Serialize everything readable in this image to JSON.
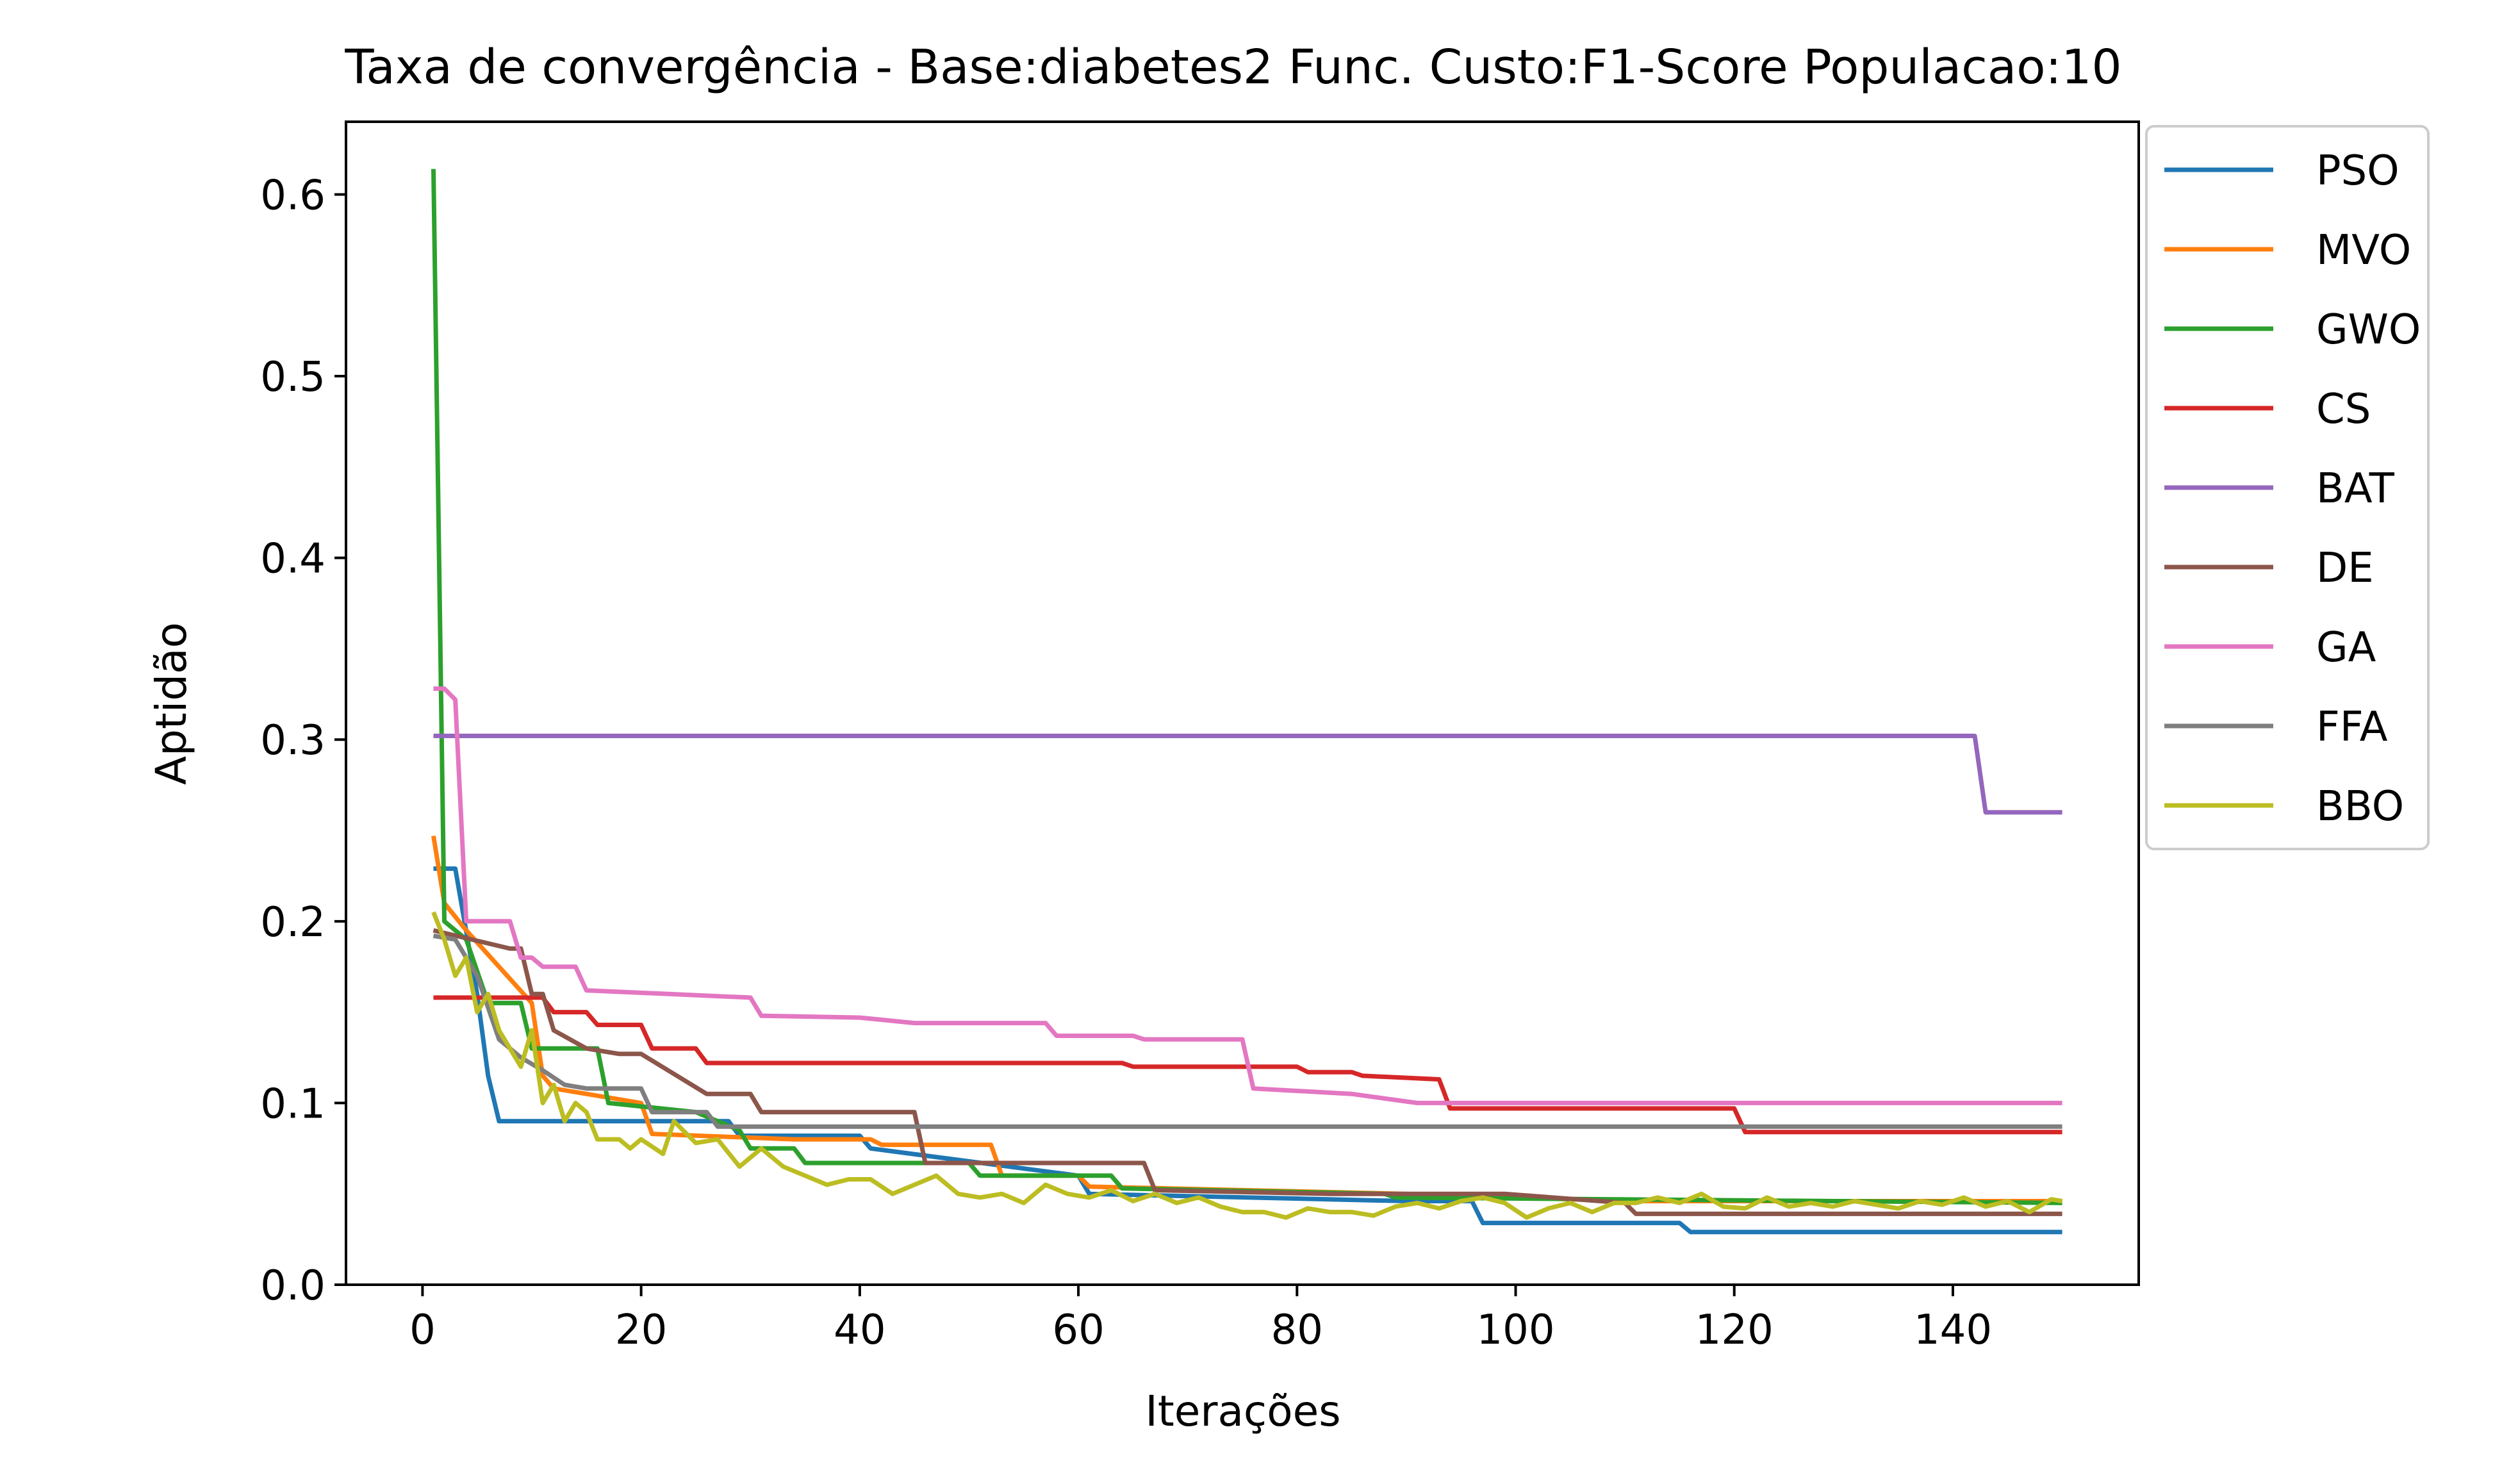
{
  "chart_data": {
    "type": "line",
    "title": "Taxa de convergência - Base:diabetes2 Func. Custo:F1-Score Populacao:10",
    "xlabel": "Iterações",
    "ylabel": "Aptidão",
    "xlim": [
      -7,
      157
    ],
    "ylim": [
      0,
      0.64
    ],
    "xticks": [
      0,
      20,
      40,
      60,
      80,
      100,
      120,
      140
    ],
    "yticks": [
      0.0,
      0.1,
      0.2,
      0.3,
      0.4,
      0.5,
      0.6
    ],
    "xtick_labels": [
      "0",
      "20",
      "40",
      "60",
      "80",
      "100",
      "120",
      "140"
    ],
    "ytick_labels": [
      "0.0",
      "0.1",
      "0.2",
      "0.3",
      "0.4",
      "0.5",
      "0.6"
    ],
    "grid": false,
    "legend_position": "outside-upper-right",
    "x_range": [
      1,
      150
    ],
    "series": [
      {
        "name": "PSO",
        "color": "#1f77b4",
        "points": [
          [
            1,
            0.229
          ],
          [
            3,
            0.229
          ],
          [
            5,
            0.16
          ],
          [
            6,
            0.115
          ],
          [
            7,
            0.09
          ],
          [
            28,
            0.09
          ],
          [
            29,
            0.082
          ],
          [
            40,
            0.082
          ],
          [
            41,
            0.075
          ],
          [
            60,
            0.06
          ],
          [
            61,
            0.05
          ],
          [
            90,
            0.046
          ],
          [
            96,
            0.046
          ],
          [
            97,
            0.034
          ],
          [
            115,
            0.034
          ],
          [
            116,
            0.029
          ],
          [
            150,
            0.029
          ]
        ]
      },
      {
        "name": "MVO",
        "color": "#ff7f0e",
        "points": [
          [
            1,
            0.247
          ],
          [
            2,
            0.21
          ],
          [
            4,
            0.195
          ],
          [
            10,
            0.155
          ],
          [
            11,
            0.115
          ],
          [
            12,
            0.108
          ],
          [
            20,
            0.1
          ],
          [
            21,
            0.083
          ],
          [
            34,
            0.08
          ],
          [
            41,
            0.08
          ],
          [
            42,
            0.077
          ],
          [
            52,
            0.077
          ],
          [
            53,
            0.06
          ],
          [
            60,
            0.06
          ],
          [
            61,
            0.054
          ],
          [
            90,
            0.05
          ],
          [
            110,
            0.046
          ],
          [
            150,
            0.046
          ]
        ]
      },
      {
        "name": "GWO",
        "color": "#2ca02c",
        "points": [
          [
            1,
            0.614
          ],
          [
            2,
            0.2
          ],
          [
            4,
            0.19
          ],
          [
            6,
            0.155
          ],
          [
            9,
            0.155
          ],
          [
            10,
            0.13
          ],
          [
            16,
            0.13
          ],
          [
            17,
            0.1
          ],
          [
            25,
            0.095
          ],
          [
            29,
            0.085
          ],
          [
            30,
            0.075
          ],
          [
            34,
            0.075
          ],
          [
            35,
            0.067
          ],
          [
            50,
            0.067
          ],
          [
            51,
            0.06
          ],
          [
            63,
            0.06
          ],
          [
            64,
            0.053
          ],
          [
            88,
            0.05
          ],
          [
            89,
            0.048
          ],
          [
            150,
            0.045
          ]
        ]
      },
      {
        "name": "CS",
        "color": "#d62728",
        "points": [
          [
            1,
            0.158
          ],
          [
            11,
            0.158
          ],
          [
            12,
            0.15
          ],
          [
            15,
            0.15
          ],
          [
            16,
            0.143
          ],
          [
            20,
            0.143
          ],
          [
            21,
            0.13
          ],
          [
            25,
            0.13
          ],
          [
            26,
            0.122
          ],
          [
            64,
            0.122
          ],
          [
            65,
            0.12
          ],
          [
            80,
            0.12
          ],
          [
            81,
            0.117
          ],
          [
            85,
            0.117
          ],
          [
            86,
            0.115
          ],
          [
            93,
            0.113
          ],
          [
            94,
            0.097
          ],
          [
            120,
            0.097
          ],
          [
            121,
            0.084
          ],
          [
            150,
            0.084
          ]
        ]
      },
      {
        "name": "BAT",
        "color": "#9467bd",
        "points": [
          [
            1,
            0.302
          ],
          [
            142,
            0.302
          ],
          [
            143,
            0.26
          ],
          [
            150,
            0.26
          ]
        ]
      },
      {
        "name": "DE",
        "color": "#8c564b",
        "points": [
          [
            1,
            0.195
          ],
          [
            8,
            0.185
          ],
          [
            9,
            0.185
          ],
          [
            10,
            0.16
          ],
          [
            11,
            0.16
          ],
          [
            12,
            0.14
          ],
          [
            15,
            0.13
          ],
          [
            18,
            0.127
          ],
          [
            20,
            0.127
          ],
          [
            26,
            0.105
          ],
          [
            30,
            0.105
          ],
          [
            31,
            0.095
          ],
          [
            45,
            0.095
          ],
          [
            46,
            0.067
          ],
          [
            66,
            0.067
          ],
          [
            67,
            0.052
          ],
          [
            83,
            0.05
          ],
          [
            99,
            0.05
          ],
          [
            110,
            0.045
          ],
          [
            111,
            0.039
          ],
          [
            150,
            0.039
          ]
        ]
      },
      {
        "name": "GA",
        "color": "#e377c2",
        "points": [
          [
            1,
            0.328
          ],
          [
            2,
            0.328
          ],
          [
            3,
            0.322
          ],
          [
            4,
            0.2
          ],
          [
            8,
            0.2
          ],
          [
            9,
            0.18
          ],
          [
            10,
            0.18
          ],
          [
            11,
            0.175
          ],
          [
            14,
            0.175
          ],
          [
            15,
            0.162
          ],
          [
            30,
            0.158
          ],
          [
            31,
            0.148
          ],
          [
            40,
            0.147
          ],
          [
            45,
            0.144
          ],
          [
            57,
            0.144
          ],
          [
            58,
            0.137
          ],
          [
            65,
            0.137
          ],
          [
            66,
            0.135
          ],
          [
            75,
            0.135
          ],
          [
            76,
            0.108
          ],
          [
            85,
            0.105
          ],
          [
            91,
            0.1
          ],
          [
            150,
            0.1
          ]
        ]
      },
      {
        "name": "FFA",
        "color": "#7f7f7f",
        "points": [
          [
            1,
            0.192
          ],
          [
            3,
            0.19
          ],
          [
            5,
            0.17
          ],
          [
            7,
            0.135
          ],
          [
            9,
            0.125
          ],
          [
            11,
            0.118
          ],
          [
            13,
            0.11
          ],
          [
            15,
            0.108
          ],
          [
            20,
            0.108
          ],
          [
            21,
            0.095
          ],
          [
            26,
            0.095
          ],
          [
            27,
            0.087
          ],
          [
            150,
            0.087
          ]
        ]
      },
      {
        "name": "BBO",
        "color": "#bcbd22",
        "points": [
          [
            1,
            0.205
          ],
          [
            2,
            0.19
          ],
          [
            3,
            0.17
          ],
          [
            4,
            0.18
          ],
          [
            5,
            0.15
          ],
          [
            6,
            0.16
          ],
          [
            7,
            0.14
          ],
          [
            8,
            0.13
          ],
          [
            9,
            0.12
          ],
          [
            10,
            0.14
          ],
          [
            11,
            0.1
          ],
          [
            12,
            0.11
          ],
          [
            13,
            0.09
          ],
          [
            14,
            0.1
          ],
          [
            15,
            0.095
          ],
          [
            16,
            0.08
          ],
          [
            18,
            0.08
          ],
          [
            19,
            0.075
          ],
          [
            20,
            0.08
          ],
          [
            22,
            0.072
          ],
          [
            23,
            0.09
          ],
          [
            25,
            0.078
          ],
          [
            27,
            0.08
          ],
          [
            29,
            0.065
          ],
          [
            31,
            0.075
          ],
          [
            33,
            0.065
          ],
          [
            35,
            0.06
          ],
          [
            37,
            0.055
          ],
          [
            39,
            0.058
          ],
          [
            41,
            0.058
          ],
          [
            43,
            0.05
          ],
          [
            45,
            0.055
          ],
          [
            47,
            0.06
          ],
          [
            49,
            0.05
          ],
          [
            51,
            0.048
          ],
          [
            53,
            0.05
          ],
          [
            55,
            0.045
          ],
          [
            57,
            0.055
          ],
          [
            59,
            0.05
          ],
          [
            61,
            0.048
          ],
          [
            63,
            0.052
          ],
          [
            65,
            0.046
          ],
          [
            67,
            0.05
          ],
          [
            69,
            0.045
          ],
          [
            71,
            0.048
          ],
          [
            73,
            0.043
          ],
          [
            75,
            0.04
          ],
          [
            77,
            0.04
          ],
          [
            79,
            0.037
          ],
          [
            81,
            0.042
          ],
          [
            83,
            0.04
          ],
          [
            85,
            0.04
          ],
          [
            87,
            0.038
          ],
          [
            89,
            0.043
          ],
          [
            91,
            0.045
          ],
          [
            93,
            0.042
          ],
          [
            95,
            0.046
          ],
          [
            97,
            0.048
          ],
          [
            99,
            0.045
          ],
          [
            101,
            0.037
          ],
          [
            103,
            0.042
          ],
          [
            105,
            0.045
          ],
          [
            107,
            0.04
          ],
          [
            109,
            0.045
          ],
          [
            111,
            0.045
          ],
          [
            113,
            0.048
          ],
          [
            115,
            0.045
          ],
          [
            117,
            0.05
          ],
          [
            119,
            0.043
          ],
          [
            121,
            0.042
          ],
          [
            123,
            0.048
          ],
          [
            125,
            0.043
          ],
          [
            127,
            0.045
          ],
          [
            129,
            0.043
          ],
          [
            131,
            0.046
          ],
          [
            133,
            0.044
          ],
          [
            135,
            0.042
          ],
          [
            137,
            0.046
          ],
          [
            139,
            0.044
          ],
          [
            141,
            0.048
          ],
          [
            143,
            0.043
          ],
          [
            145,
            0.046
          ],
          [
            147,
            0.04
          ],
          [
            149,
            0.047
          ],
          [
            150,
            0.046
          ]
        ]
      }
    ]
  }
}
